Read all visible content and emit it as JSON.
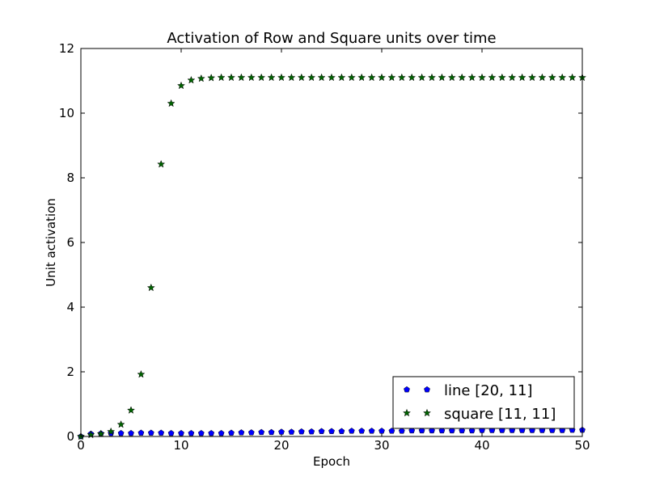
{
  "chart_data": {
    "type": "scatter",
    "title": "Activation of Row and Square units over time",
    "xlabel": "Epoch",
    "ylabel": "Unit activation",
    "xlim": [
      0,
      50
    ],
    "ylim": [
      0,
      12
    ],
    "xticks": [
      0,
      10,
      20,
      30,
      40,
      50
    ],
    "yticks": [
      0,
      2,
      4,
      6,
      8,
      10,
      12
    ],
    "grid": false,
    "legend_position": "lower-right",
    "series": [
      {
        "name": "line [20, 11]",
        "marker": "pentagon",
        "color": "#0000ff",
        "x": [
          0,
          1,
          2,
          3,
          4,
          5,
          6,
          7,
          8,
          9,
          10,
          11,
          12,
          13,
          14,
          15,
          16,
          17,
          18,
          19,
          20,
          21,
          22,
          23,
          24,
          25,
          26,
          27,
          28,
          29,
          30,
          31,
          32,
          33,
          34,
          35,
          36,
          37,
          38,
          39,
          40,
          41,
          42,
          43,
          44,
          45,
          46,
          47,
          48,
          49,
          50
        ],
        "y": [
          0.0,
          0.08,
          0.09,
          0.1,
          0.1,
          0.1,
          0.11,
          0.11,
          0.11,
          0.1,
          0.1,
          0.1,
          0.1,
          0.1,
          0.1,
          0.11,
          0.12,
          0.12,
          0.13,
          0.13,
          0.14,
          0.14,
          0.15,
          0.15,
          0.16,
          0.16,
          0.16,
          0.17,
          0.17,
          0.17,
          0.17,
          0.17,
          0.17,
          0.18,
          0.18,
          0.18,
          0.18,
          0.18,
          0.18,
          0.18,
          0.19,
          0.19,
          0.19,
          0.19,
          0.19,
          0.19,
          0.19,
          0.19,
          0.19,
          0.2,
          0.2
        ]
      },
      {
        "name": "square [11, 11]",
        "marker": "star",
        "color": "#006400",
        "x": [
          0,
          1,
          2,
          3,
          4,
          5,
          6,
          7,
          8,
          9,
          10,
          11,
          12,
          13,
          14,
          15,
          16,
          17,
          18,
          19,
          20,
          21,
          22,
          23,
          24,
          25,
          26,
          27,
          28,
          29,
          30,
          31,
          32,
          33,
          34,
          35,
          36,
          37,
          38,
          39,
          40,
          41,
          42,
          43,
          44,
          45,
          46,
          47,
          48,
          49,
          50
        ],
        "y": [
          0.0,
          0.05,
          0.08,
          0.15,
          0.37,
          0.81,
          1.92,
          4.6,
          8.42,
          10.3,
          10.85,
          11.02,
          11.07,
          11.09,
          11.1,
          11.1,
          11.1,
          11.1,
          11.1,
          11.1,
          11.1,
          11.1,
          11.1,
          11.1,
          11.1,
          11.1,
          11.1,
          11.1,
          11.1,
          11.1,
          11.1,
          11.1,
          11.1,
          11.1,
          11.1,
          11.1,
          11.1,
          11.1,
          11.1,
          11.1,
          11.1,
          11.1,
          11.1,
          11.1,
          11.1,
          11.1,
          11.1,
          11.1,
          11.1,
          11.1,
          11.1
        ]
      }
    ]
  }
}
